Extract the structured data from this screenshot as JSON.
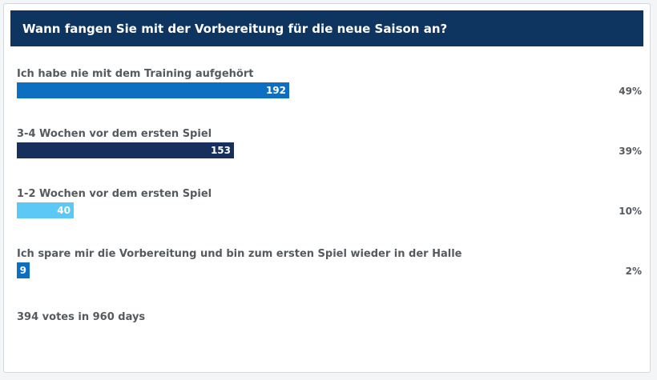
{
  "poll": {
    "question": "Wann fangen Sie mit der Vorbereitung für die neue Saison an?",
    "answers": [
      {
        "label": "Ich habe nie mit dem Training aufgehört",
        "votes": "192",
        "percent": "49%",
        "color": "#0d6fc2"
      },
      {
        "label": "3-4 Wochen vor dem ersten Spiel",
        "votes": "153",
        "percent": "39%",
        "color": "#172f5d"
      },
      {
        "label": "1-2 Wochen vor dem ersten Spiel",
        "votes": "40",
        "percent": "10%",
        "color": "#5bc8f5"
      },
      {
        "label": "Ich spare mir die Vorbereitung und bin zum ersten Spiel wieder in der Halle",
        "votes": "9",
        "percent": "2%",
        "color": "#0d6fc2"
      }
    ],
    "footer": "394 votes in 960 days"
  },
  "colors": {
    "header_bg": "#0e3560",
    "text": "#555a5f"
  }
}
